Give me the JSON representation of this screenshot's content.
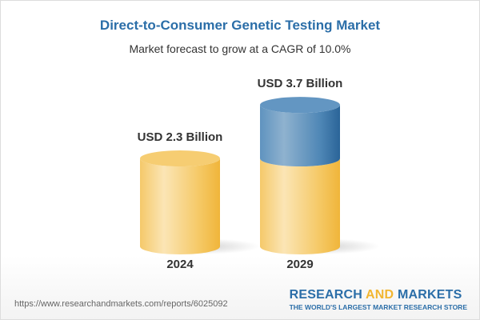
{
  "title": "Direct-to-Consumer Genetic Testing Market",
  "subtitle": "Market forecast to grow at a CAGR of 10.0%",
  "chart_data": {
    "type": "bar",
    "style": "3d-cylinder",
    "categories": [
      "2024",
      "2029"
    ],
    "values": [
      2.3,
      3.7
    ],
    "data_labels": [
      "USD 2.3 Billion",
      "USD 3.7 Billion"
    ],
    "unit": "USD Billion",
    "colors": {
      "base": "#f5c55a",
      "growth": "#4a86b8"
    },
    "grid": false
  },
  "footer": {
    "url": "https://www.researchandmarkets.com/reports/6025092",
    "logo_part1": "RESEARCH ",
    "logo_part2": "AND",
    "logo_part3": " MARKETS",
    "tagline": "THE WORLD'S LARGEST MARKET RESEARCH STORE"
  }
}
